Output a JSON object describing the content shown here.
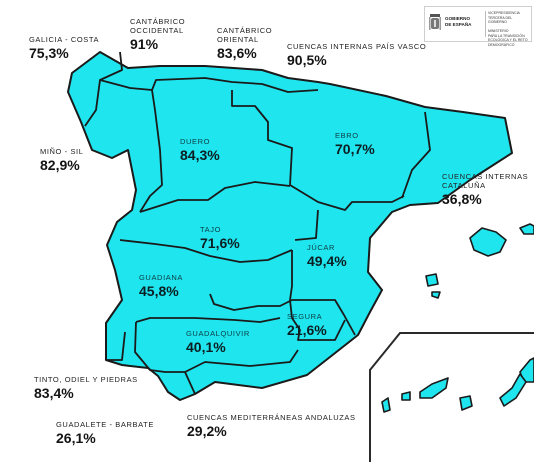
{
  "colors": {
    "region_fill": "#1fe5ee",
    "border": "#1a1a1a",
    "background": "#ffffff",
    "inset_frame": "#2a2a2a"
  },
  "logo": {
    "gobierno": "GOBIERNO\nDE ESPAÑA",
    "ministerio": "VICEPRESIDENCIA\nTERCERA DEL GOBIERNO\n\nMINISTERIO\nPARA LA TRANSICIÓN\nECOLÓGICA Y EL RETO DEMOGRÁFICO"
  },
  "basins": [
    {
      "id": "galicia-costa",
      "name": "GALICIA - COSTA",
      "value": "75,3%",
      "pct": 75.3
    },
    {
      "id": "cantabrico-occidental",
      "name": "CANTÁBRICO\nOCCIDENTAL",
      "value": "91%",
      "pct": 91
    },
    {
      "id": "cantabrico-oriental",
      "name": "CANTÁBRICO\nORIENTAL",
      "value": "83,6%",
      "pct": 83.6
    },
    {
      "id": "cuencas-internas-pais-vasco",
      "name": "CUENCAS INTERNAS PAÍS VASCO",
      "value": "90,5%",
      "pct": 90.5
    },
    {
      "id": "mino-sil",
      "name": "MIÑO - SIL",
      "value": "82,9%",
      "pct": 82.9
    },
    {
      "id": "duero",
      "name": "DUERO",
      "value": "84,3%",
      "pct": 84.3
    },
    {
      "id": "ebro",
      "name": "EBRO",
      "value": "70,7%",
      "pct": 70.7
    },
    {
      "id": "cuencas-internas-cataluna",
      "name": "CUENCAS INTERNAS\nCATALUÑA",
      "value": "36,8%",
      "pct": 36.8
    },
    {
      "id": "tajo",
      "name": "TAJO",
      "value": "71,6%",
      "pct": 71.6
    },
    {
      "id": "jucar",
      "name": "JÚCAR",
      "value": "49,4%",
      "pct": 49.4
    },
    {
      "id": "guadiana",
      "name": "GUADIANA",
      "value": "45,8%",
      "pct": 45.8
    },
    {
      "id": "segura",
      "name": "SEGURA",
      "value": "21,6%",
      "pct": 21.6
    },
    {
      "id": "guadalquivir",
      "name": "GUADALQUIVIR",
      "value": "40,1%",
      "pct": 40.1
    },
    {
      "id": "tinto-odiel-piedras",
      "name": "TINTO, ODIEL Y PIEDRAS",
      "value": "83,4%",
      "pct": 83.4
    },
    {
      "id": "guadalete-barbate",
      "name": "GUADALETE - BARBATE",
      "value": "26,1%",
      "pct": 26.1
    },
    {
      "id": "cuencas-mediterraneas-andaluzas",
      "name": "CUENCAS MEDITERRÁNEAS ANDALUZAS",
      "value": "29,2%",
      "pct": 29.2
    }
  ]
}
